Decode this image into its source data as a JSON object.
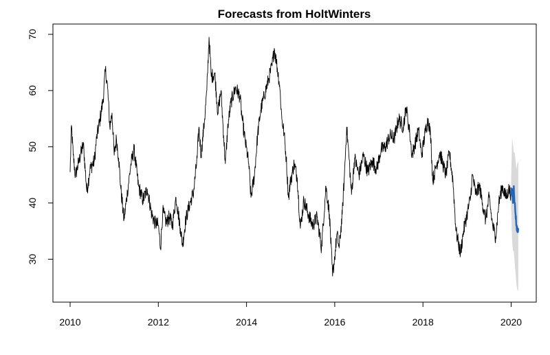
{
  "chart_data": {
    "type": "line",
    "title": "Forecasts from HoltWinters",
    "xlabel": "",
    "ylabel": "",
    "xlim": [
      2010,
      2020.3
    ],
    "ylim": [
      23.5,
      71.5
    ],
    "x_ticks": [
      "2010",
      "2012",
      "2014",
      "2016",
      "2018",
      "2020"
    ],
    "y_ticks": [
      "30",
      "40",
      "50",
      "60",
      "70"
    ],
    "grid": false,
    "legend": "none",
    "series": [
      {
        "role": "observed",
        "color": "#000000",
        "points": [
          [
            2010.0,
            45.5
          ],
          [
            2010.03,
            53.8
          ],
          [
            2010.07,
            48.5
          ],
          [
            2010.12,
            44.8
          ],
          [
            2010.2,
            47.5
          ],
          [
            2010.3,
            50.5
          ],
          [
            2010.38,
            42.0
          ],
          [
            2010.45,
            46.0
          ],
          [
            2010.55,
            47.5
          ],
          [
            2010.6,
            51.5
          ],
          [
            2010.68,
            55.0
          ],
          [
            2010.75,
            58.5
          ],
          [
            2010.8,
            63.8
          ],
          [
            2010.85,
            60.5
          ],
          [
            2010.9,
            53.5
          ],
          [
            2010.95,
            56.0
          ],
          [
            2011.0,
            48.5
          ],
          [
            2011.05,
            51.5
          ],
          [
            2011.1,
            48.0
          ],
          [
            2011.15,
            42.5
          ],
          [
            2011.22,
            37.0
          ],
          [
            2011.3,
            42.0
          ],
          [
            2011.38,
            47.0
          ],
          [
            2011.45,
            49.5
          ],
          [
            2011.55,
            43.0
          ],
          [
            2011.65,
            40.5
          ],
          [
            2011.75,
            42.5
          ],
          [
            2011.85,
            38.0
          ],
          [
            2011.92,
            36.5
          ],
          [
            2012.0,
            36.0
          ],
          [
            2012.05,
            32.0
          ],
          [
            2012.1,
            38.5
          ],
          [
            2012.18,
            36.5
          ],
          [
            2012.25,
            37.5
          ],
          [
            2012.32,
            36.0
          ],
          [
            2012.4,
            41.0
          ],
          [
            2012.5,
            35.5
          ],
          [
            2012.55,
            32.5
          ],
          [
            2012.62,
            37.0
          ],
          [
            2012.7,
            39.5
          ],
          [
            2012.8,
            42.0
          ],
          [
            2012.88,
            48.0
          ],
          [
            2012.92,
            53.5
          ],
          [
            2012.97,
            48.5
          ],
          [
            2013.05,
            55.0
          ],
          [
            2013.1,
            60.0
          ],
          [
            2013.15,
            69.5
          ],
          [
            2013.2,
            62.5
          ],
          [
            2013.28,
            63.0
          ],
          [
            2013.35,
            56.0
          ],
          [
            2013.42,
            60.0
          ],
          [
            2013.48,
            52.0
          ],
          [
            2013.52,
            47.0
          ],
          [
            2013.58,
            54.0
          ],
          [
            2013.65,
            58.0
          ],
          [
            2013.75,
            60.5
          ],
          [
            2013.85,
            59.0
          ],
          [
            2013.9,
            55.0
          ],
          [
            2013.97,
            51.0
          ],
          [
            2014.05,
            47.0
          ],
          [
            2014.1,
            41.0
          ],
          [
            2014.18,
            45.0
          ],
          [
            2014.25,
            52.0
          ],
          [
            2014.32,
            56.5
          ],
          [
            2014.4,
            59.0
          ],
          [
            2014.5,
            62.0
          ],
          [
            2014.58,
            64.5
          ],
          [
            2014.63,
            67.5
          ],
          [
            2014.68,
            65.0
          ],
          [
            2014.75,
            61.0
          ],
          [
            2014.8,
            55.0
          ],
          [
            2014.85,
            52.5
          ],
          [
            2014.9,
            48.0
          ],
          [
            2014.95,
            41.0
          ],
          [
            2015.0,
            44.0
          ],
          [
            2015.08,
            47.0
          ],
          [
            2015.15,
            44.5
          ],
          [
            2015.22,
            35.5
          ],
          [
            2015.3,
            40.5
          ],
          [
            2015.4,
            38.0
          ],
          [
            2015.5,
            36.0
          ],
          [
            2015.6,
            37.5
          ],
          [
            2015.7,
            32.0
          ],
          [
            2015.8,
            43.0
          ],
          [
            2015.88,
            38.0
          ],
          [
            2015.95,
            27.0
          ],
          [
            2016.0,
            30.5
          ],
          [
            2016.05,
            34.5
          ],
          [
            2016.1,
            32.0
          ],
          [
            2016.17,
            38.0
          ],
          [
            2016.22,
            45.0
          ],
          [
            2016.27,
            53.5
          ],
          [
            2016.32,
            48.5
          ],
          [
            2016.38,
            41.5
          ],
          [
            2016.45,
            48.0
          ],
          [
            2016.55,
            45.0
          ],
          [
            2016.65,
            48.5
          ],
          [
            2016.75,
            45.5
          ],
          [
            2016.85,
            47.5
          ],
          [
            2016.95,
            46.0
          ],
          [
            2017.05,
            49.5
          ],
          [
            2017.15,
            50.0
          ],
          [
            2017.25,
            52.0
          ],
          [
            2017.35,
            51.5
          ],
          [
            2017.45,
            55.0
          ],
          [
            2017.55,
            53.5
          ],
          [
            2017.62,
            57.0
          ],
          [
            2017.7,
            52.5
          ],
          [
            2017.75,
            48.5
          ],
          [
            2017.82,
            50.5
          ],
          [
            2017.9,
            53.0
          ],
          [
            2017.97,
            48.5
          ],
          [
            2018.05,
            52.5
          ],
          [
            2018.12,
            55.0
          ],
          [
            2018.18,
            51.5
          ],
          [
            2018.22,
            44.0
          ],
          [
            2018.3,
            46.5
          ],
          [
            2018.38,
            49.0
          ],
          [
            2018.45,
            47.0
          ],
          [
            2018.52,
            45.0
          ],
          [
            2018.6,
            49.0
          ],
          [
            2018.68,
            44.0
          ],
          [
            2018.75,
            35.0
          ],
          [
            2018.8,
            33.0
          ],
          [
            2018.85,
            31.0
          ],
          [
            2018.92,
            35.0
          ],
          [
            2019.0,
            38.0
          ],
          [
            2019.08,
            41.0
          ],
          [
            2019.12,
            45.0
          ],
          [
            2019.2,
            41.5
          ],
          [
            2019.28,
            43.0
          ],
          [
            2019.35,
            40.0
          ],
          [
            2019.42,
            37.0
          ],
          [
            2019.5,
            41.0
          ],
          [
            2019.58,
            36.0
          ],
          [
            2019.65,
            34.0
          ],
          [
            2019.72,
            40.0
          ],
          [
            2019.8,
            43.0
          ],
          [
            2019.88,
            41.0
          ],
          [
            2019.95,
            42.5
          ],
          [
            2020.0,
            41.5
          ]
        ]
      },
      {
        "role": "forecast",
        "color": "#2266bb",
        "points": [
          [
            2020.0,
            41.5
          ],
          [
            2020.02,
            42.5
          ],
          [
            2020.04,
            40.0
          ],
          [
            2020.06,
            43.0
          ],
          [
            2020.08,
            40.0
          ],
          [
            2020.1,
            38.0
          ],
          [
            2020.12,
            36.0
          ],
          [
            2020.14,
            35.0
          ],
          [
            2020.16,
            35.5
          ]
        ]
      }
    ],
    "interval": {
      "color": "#d9d9d9",
      "upper": [
        [
          2020.0,
          44.0
        ],
        [
          2020.02,
          51.5
        ],
        [
          2020.04,
          50.5
        ],
        [
          2020.06,
          49.0
        ],
        [
          2020.08,
          49.0
        ],
        [
          2020.1,
          47.5
        ],
        [
          2020.12,
          46.0
        ],
        [
          2020.14,
          47.0
        ],
        [
          2020.16,
          47.5
        ]
      ],
      "lower": [
        [
          2020.0,
          39.5
        ],
        [
          2020.02,
          33.5
        ],
        [
          2020.04,
          31.5
        ],
        [
          2020.06,
          31.5
        ],
        [
          2020.08,
          29.5
        ],
        [
          2020.1,
          27.5
        ],
        [
          2020.12,
          25.5
        ],
        [
          2020.14,
          24.5
        ],
        [
          2020.16,
          24.5
        ]
      ]
    }
  }
}
